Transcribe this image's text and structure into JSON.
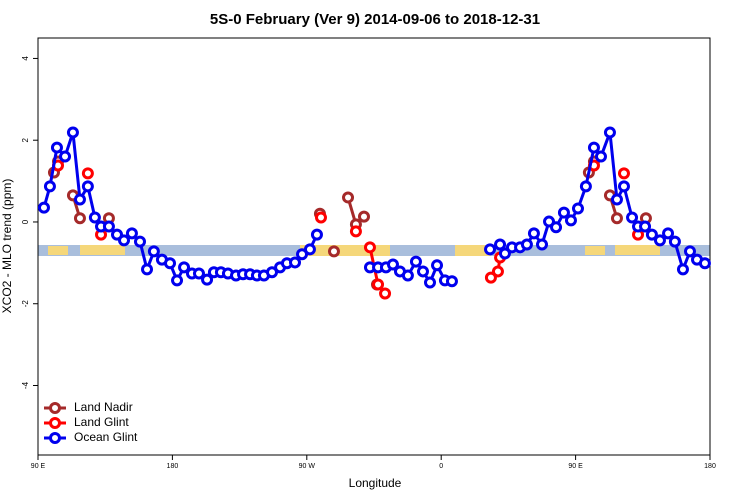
{
  "chart_data": {
    "type": "line",
    "title": "5S-0 February (Ver 9)   2014-09-06 to 2018-12-31",
    "xlabel": "Longitude",
    "ylabel": "XCO2 - MLO trend (ppm)",
    "xlim": [
      90,
      540
    ],
    "ylim": [
      -5.7,
      4.5
    ],
    "xticks": [
      {
        "value": 90,
        "label": "90 E"
      },
      {
        "value": 180,
        "label": "180"
      },
      {
        "value": 270,
        "label": "90 W"
      },
      {
        "value": 360,
        "label": "0"
      },
      {
        "value": 450,
        "label": "90 E"
      },
      {
        "value": 540,
        "label": "180"
      }
    ],
    "yticks": [
      -4,
      -2,
      0,
      2,
      4
    ],
    "legend": "bottom-left",
    "series": [
      {
        "name": "Land Nadir",
        "color": "#a52a2a",
        "x": [
          100.7,
          103.4,
          null,
          113.4,
          118.1,
          null,
          137.5,
          null,
          278.8,
          null,
          288.2,
          null,
          297.6,
          302.9,
          308.3,
          null,
          317.0,
          null,
          458.9,
          462.3,
          null,
          473.0,
          477.7,
          null,
          497.1
        ],
        "values": [
          1.21,
          1.48,
          null,
          0.65,
          0.09,
          null,
          0.09,
          null,
          0.2,
          null,
          -0.72,
          null,
          0.6,
          -0.06,
          0.13,
          null,
          -1.53,
          null,
          1.21,
          1.48,
          null,
          0.65,
          0.09,
          null,
          0.09
        ]
      },
      {
        "name": "Land Glint",
        "color": "#ff0000",
        "x": [
          103.4,
          null,
          123.4,
          null,
          132.2,
          null,
          279.5,
          null,
          302.9,
          null,
          312.3,
          317.7,
          322.4,
          null,
          393.3,
          398.0,
          399.4,
          null,
          462.3,
          null,
          482.4,
          null,
          491.8
        ],
        "values": [
          1.38,
          null,
          1.19,
          null,
          -0.31,
          null,
          0.11,
          null,
          -0.23,
          null,
          -0.62,
          -1.53,
          -1.75,
          null,
          -1.36,
          -1.21,
          -0.87,
          null,
          1.38,
          null,
          1.19,
          null,
          -0.31
        ]
      },
      {
        "name": "Ocean Glint",
        "color": "#0000ee",
        "x": [
          94.0,
          98.0,
          102.7,
          108.1,
          113.4,
          118.1,
          123.4,
          128.1,
          132.2,
          137.5,
          142.9,
          147.6,
          152.9,
          158.3,
          163.0,
          167.6,
          173.0,
          178.4,
          183.1,
          187.8,
          193.1,
          197.8,
          203.2,
          207.8,
          212.5,
          217.2,
          222.6,
          227.3,
          232.0,
          236.6,
          241.3,
          246.7,
          252.1,
          256.7,
          262.1,
          266.8,
          272.1,
          276.8,
          null,
          312.3,
          317.7,
          323.0,
          327.7,
          332.4,
          337.7,
          343.1,
          347.8,
          352.5,
          357.2,
          362.5,
          367.2,
          null,
          392.7,
          399.4,
          402.7,
          407.4,
          412.8,
          417.4,
          422.1,
          427.5,
          432.2,
          436.9,
          442.2,
          446.9,
          451.6,
          456.9,
          462.3,
          467.0,
          473.0,
          477.7,
          482.4,
          487.8,
          491.8,
          496.5,
          501.1,
          506.5,
          511.9,
          516.5,
          521.9,
          526.6,
          531.3,
          536.6
        ],
        "values": [
          0.35,
          0.87,
          1.82,
          1.6,
          2.19,
          0.55,
          0.87,
          0.11,
          -0.11,
          -0.11,
          -0.31,
          -0.45,
          -0.28,
          -0.48,
          -1.16,
          -0.72,
          -0.92,
          -1.01,
          -1.43,
          -1.11,
          -1.26,
          -1.26,
          -1.41,
          -1.23,
          -1.23,
          -1.26,
          -1.31,
          -1.28,
          -1.28,
          -1.31,
          -1.31,
          -1.23,
          -1.11,
          -1.01,
          -0.99,
          -0.79,
          -0.67,
          -0.31,
          null,
          -1.11,
          -1.11,
          -1.11,
          -1.04,
          -1.21,
          -1.31,
          -0.97,
          -1.21,
          -1.48,
          -1.06,
          -1.43,
          -1.45,
          null,
          -0.67,
          -0.55,
          -0.77,
          -0.62,
          -0.62,
          -0.55,
          -0.28,
          -0.55,
          0.01,
          -0.13,
          0.23,
          0.04,
          0.33,
          0.87,
          1.82,
          1.6,
          2.19,
          0.55,
          0.87,
          0.11,
          -0.11,
          -0.11,
          -0.31,
          -0.45,
          -0.28,
          -0.48,
          -1.16,
          -0.72,
          -0.92,
          -1.01
        ]
      }
    ]
  }
}
